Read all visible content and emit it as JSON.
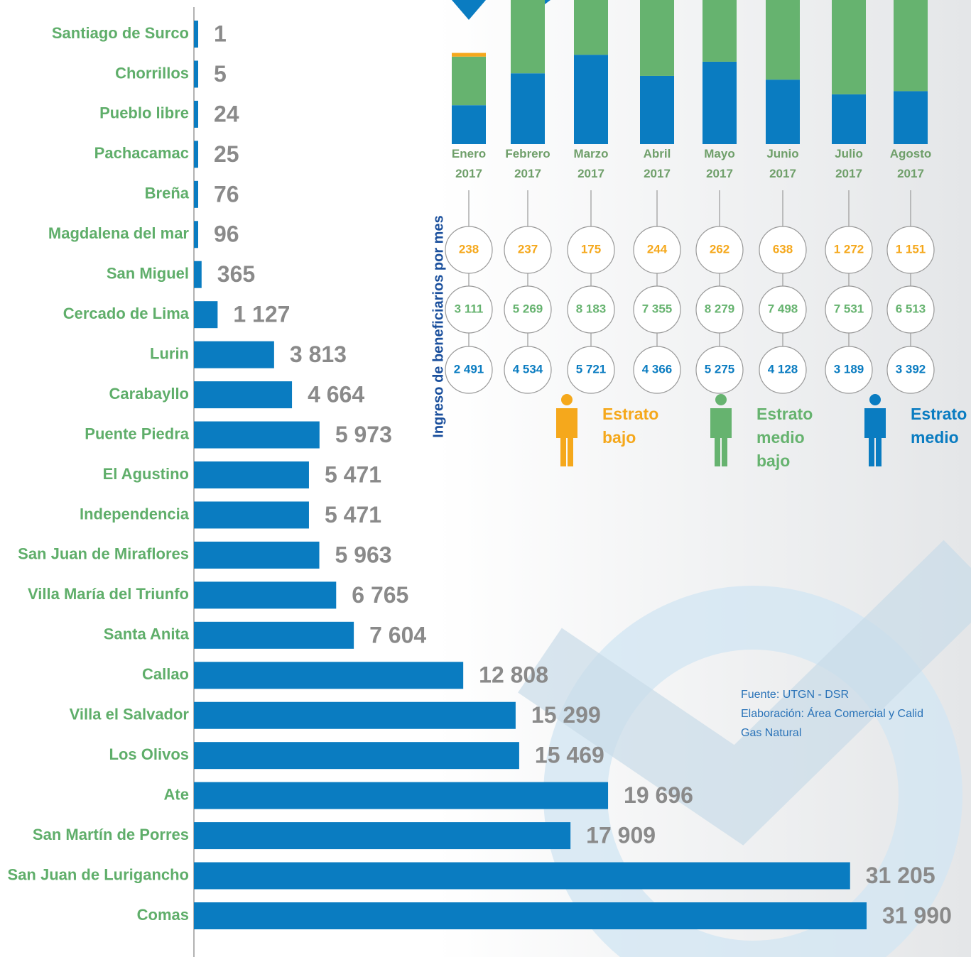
{
  "chart_data": [
    {
      "type": "hbar",
      "color": "#0a7cc1",
      "categories": [
        "Santiago de Surco",
        "Chorrillos",
        "Pueblo libre",
        "Pachacamac",
        "Breña",
        "Magdalena del mar",
        "San Miguel",
        "Cercado de Lima",
        "Lurin",
        "Carabayllo",
        "Puente Piedra",
        "El Agustino",
        "Independencia",
        "San Juan de Miraflores",
        "Villa María del Triunfo",
        "Santa Anita",
        "Callao",
        "Villa el Salvador",
        "Los Olivos",
        "Ate",
        "San Martín de Porres",
        "San Juan de Lurigancho",
        "Comas"
      ],
      "values": [
        1,
        5,
        24,
        25,
        76,
        96,
        365,
        1127,
        3813,
        4664,
        5973,
        5471,
        5471,
        5963,
        6765,
        7604,
        12808,
        15299,
        15469,
        19696,
        17909,
        31205,
        31990
      ],
      "value_labels": [
        "1",
        "5",
        "24",
        "25",
        "76",
        "96",
        "365",
        "1 127",
        "3 813",
        "4 664",
        "5 973",
        "5 471",
        "5 471",
        "5 963",
        "6 765",
        "7 604",
        "12 808",
        "15 299",
        "15 469",
        "19 696",
        "17 909",
        "31 205",
        "31 990"
      ]
    },
    {
      "type": "stacked-bar",
      "ylabel": "Ingreso de beneficiarios por mes",
      "categories": [
        "Enero 2017",
        "Febrero 2017",
        "Marzo 2017",
        "Abril 2017",
        "Mayo 2017",
        "Junio 2017",
        "Julio 2017",
        "Agosto 2017"
      ],
      "series": [
        {
          "name": "Estrato bajo",
          "color": "#f5a81c",
          "values": [
            238,
            237,
            175,
            244,
            262,
            638,
            1272,
            1151
          ],
          "value_labels": [
            "238",
            "237",
            "175",
            "244",
            "262",
            "638",
            "1 272",
            "1 151"
          ]
        },
        {
          "name": "Estrato medio bajo",
          "color": "#66b36f",
          "values": [
            3111,
            5269,
            8183,
            7355,
            8279,
            7498,
            7531,
            6513
          ],
          "value_labels": [
            "3 111",
            "5 269",
            "8 183",
            "7 355",
            "8 279",
            "7 498",
            "7 531",
            "6 513"
          ]
        },
        {
          "name": "Estrato medio",
          "color": "#0a7cc1",
          "values": [
            2491,
            4534,
            5721,
            4366,
            5275,
            4128,
            3189,
            3392
          ],
          "value_labels": [
            "2 491",
            "4 534",
            "5 721",
            "4 366",
            "5 275",
            "4 128",
            "3 189",
            "3 392"
          ]
        }
      ],
      "notes": [
        "Fuente: UTGN - DSR",
        "Elaboración:  Área Comercial y Calid",
        "Gas Natural"
      ]
    }
  ]
}
